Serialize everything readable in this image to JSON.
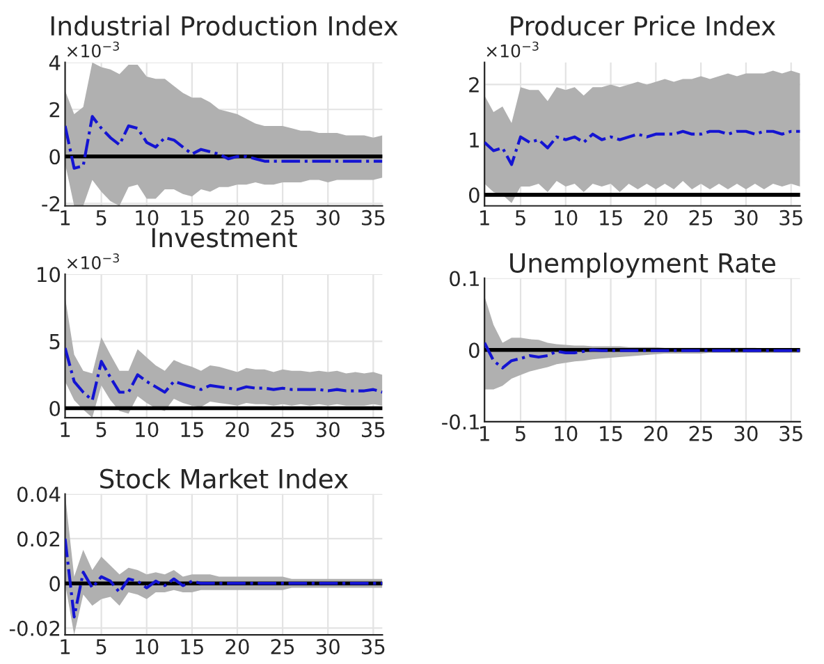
{
  "chart_data": [
    {
      "type": "line",
      "title": "Industrial Production Index",
      "annotations": [
        "×10$^{−3}$"
      ],
      "x": [
        1,
        2,
        3,
        4,
        5,
        6,
        7,
        8,
        9,
        10,
        11,
        12,
        13,
        14,
        15,
        16,
        17,
        18,
        19,
        20,
        21,
        22,
        23,
        24,
        25,
        26,
        27,
        28,
        29,
        30,
        31,
        32,
        33,
        34,
        35,
        36
      ],
      "series": [
        {
          "color": "#1414d2",
          "values": [
            1.3,
            -0.5,
            -0.4,
            1.7,
            1.2,
            0.8,
            0.5,
            1.3,
            1.2,
            0.6,
            0.4,
            0.8,
            0.7,
            0.4,
            0.1,
            0.3,
            0.2,
            0.1,
            -0.1,
            0,
            0,
            -0.1,
            -0.2,
            -0.2,
            -0.2,
            -0.2,
            -0.2,
            -0.2,
            -0.2,
            -0.2,
            -0.2,
            -0.2,
            -0.2,
            -0.2,
            -0.2,
            -0.2
          ],
          "upper": [
            2.8,
            1.8,
            2.1,
            4.0,
            3.8,
            3.7,
            3.5,
            3.9,
            3.9,
            3.4,
            3.3,
            3.3,
            3.0,
            2.7,
            2.5,
            2.5,
            2.3,
            2.0,
            1.9,
            1.8,
            1.6,
            1.4,
            1.3,
            1.3,
            1.3,
            1.2,
            1.1,
            1.1,
            1.0,
            1.0,
            1.0,
            0.9,
            0.9,
            0.9,
            0.8,
            0.9
          ],
          "lower": [
            -0.3,
            -2.1,
            -2.1,
            -1.0,
            -1.5,
            -1.9,
            -2.1,
            -1.3,
            -1.2,
            -1.8,
            -1.8,
            -1.4,
            -1.4,
            -1.6,
            -1.7,
            -1.4,
            -1.5,
            -1.3,
            -1.3,
            -1.2,
            -1.2,
            -1.1,
            -1.2,
            -1.2,
            -1.1,
            -1.1,
            -1.1,
            -1.0,
            -1.0,
            -1.1,
            -1.0,
            -1.0,
            -1.0,
            -1.0,
            -1.0,
            -0.9
          ]
        }
      ],
      "xlim": [
        1,
        36
      ],
      "ylim": [
        -2.1,
        4
      ],
      "xticks": [
        1,
        5,
        10,
        15,
        20,
        25,
        30,
        35
      ],
      "yticks": [
        -2,
        0,
        2,
        4
      ],
      "grid": true,
      "line_style": "dashed",
      "ref_lines": [
        {
          "axis": "y",
          "value": 0,
          "color": "#000000"
        }
      ]
    },
    {
      "type": "line",
      "title": "Producer Price Index",
      "annotations": [
        "×10$^{−3}$"
      ],
      "x": [
        1,
        2,
        3,
        4,
        5,
        6,
        7,
        8,
        9,
        10,
        11,
        12,
        13,
        14,
        15,
        16,
        17,
        18,
        19,
        20,
        21,
        22,
        23,
        24,
        25,
        26,
        27,
        28,
        29,
        30,
        31,
        32,
        33,
        34,
        35,
        36
      ],
      "series": [
        {
          "color": "#1414d2",
          "values": [
            0.95,
            0.8,
            0.85,
            0.55,
            1.05,
            0.95,
            1.0,
            0.85,
            1.05,
            1.0,
            1.05,
            0.95,
            1.1,
            1.0,
            1.05,
            1.0,
            1.05,
            1.1,
            1.05,
            1.1,
            1.1,
            1.1,
            1.15,
            1.1,
            1.1,
            1.15,
            1.15,
            1.1,
            1.15,
            1.15,
            1.1,
            1.15,
            1.15,
            1.1,
            1.15,
            1.15
          ],
          "upper": [
            1.8,
            1.5,
            1.6,
            1.3,
            1.95,
            1.9,
            1.9,
            1.7,
            1.95,
            1.9,
            1.95,
            1.8,
            1.95,
            1.95,
            2.0,
            1.95,
            2.0,
            2.05,
            2.0,
            2.05,
            2.1,
            2.05,
            2.1,
            2.1,
            2.15,
            2.1,
            2.15,
            2.2,
            2.15,
            2.2,
            2.2,
            2.2,
            2.25,
            2.2,
            2.25,
            2.2
          ],
          "lower": [
            0.2,
            0.05,
            0.0,
            -0.15,
            0.15,
            0.15,
            0.2,
            0.05,
            0.25,
            0.15,
            0.2,
            0.05,
            0.2,
            0.15,
            0.2,
            0.05,
            0.2,
            0.1,
            0.2,
            0.1,
            0.2,
            0.1,
            0.25,
            0.1,
            0.2,
            0.1,
            0.2,
            0.1,
            0.2,
            0.1,
            0.2,
            0.1,
            0.2,
            0.15,
            0.2,
            0.15
          ]
        }
      ],
      "xlim": [
        1,
        36
      ],
      "ylim": [
        -0.2,
        2.4
      ],
      "xticks": [
        1,
        5,
        10,
        15,
        20,
        25,
        30,
        35
      ],
      "yticks": [
        0,
        1,
        2
      ],
      "grid": true,
      "line_style": "dashed",
      "ref_lines": [
        {
          "axis": "y",
          "value": 0,
          "color": "#000000"
        }
      ]
    },
    {
      "type": "line",
      "title": "Investment",
      "annotations": [
        "×10$^{−3}$"
      ],
      "x": [
        1,
        2,
        3,
        4,
        5,
        6,
        7,
        8,
        9,
        10,
        11,
        12,
        13,
        14,
        15,
        16,
        17,
        18,
        19,
        20,
        21,
        22,
        23,
        24,
        25,
        26,
        27,
        28,
        29,
        30,
        31,
        32,
        33,
        34,
        35,
        36
      ],
      "series": [
        {
          "color": "#1414d2",
          "values": [
            4.5,
            2.0,
            1.2,
            0.6,
            3.5,
            2.3,
            1.2,
            1.2,
            2.5,
            2.0,
            1.6,
            1.2,
            2.0,
            1.8,
            1.6,
            1.4,
            1.7,
            1.6,
            1.5,
            1.4,
            1.6,
            1.5,
            1.5,
            1.4,
            1.5,
            1.4,
            1.4,
            1.4,
            1.4,
            1.3,
            1.4,
            1.3,
            1.3,
            1.3,
            1.4,
            1.2
          ],
          "upper": [
            8.3,
            4.0,
            2.8,
            2.6,
            5.3,
            4.0,
            2.8,
            2.8,
            4.4,
            3.8,
            3.2,
            2.8,
            3.6,
            3.3,
            3.1,
            2.8,
            3.2,
            3.1,
            2.9,
            2.7,
            3.0,
            2.9,
            2.9,
            2.7,
            2.9,
            2.8,
            2.8,
            2.7,
            2.8,
            2.7,
            2.8,
            2.6,
            2.7,
            2.6,
            2.7,
            2.5
          ],
          "lower": [
            2.0,
            0.6,
            -0.1,
            -0.7,
            1.7,
            0.6,
            -0.2,
            -0.4,
            0.9,
            0.4,
            0.0,
            -0.2,
            0.7,
            0.4,
            0.2,
            0.1,
            0.5,
            0.4,
            0.3,
            0.2,
            0.4,
            0.3,
            0.3,
            0.2,
            0.3,
            0.2,
            0.3,
            0.2,
            0.3,
            0.2,
            0.3,
            0.2,
            0.2,
            0.2,
            0.3,
            0.2
          ]
        }
      ],
      "xlim": [
        1,
        36
      ],
      "ylim": [
        -0.7,
        10
      ],
      "xticks": [
        1,
        5,
        10,
        15,
        20,
        25,
        30,
        35
      ],
      "yticks": [
        0,
        5,
        10
      ],
      "grid": true,
      "line_style": "dashed",
      "ref_lines": [
        {
          "axis": "y",
          "value": 0,
          "color": "#000000"
        }
      ]
    },
    {
      "type": "line",
      "title": "Unemployment Rate",
      "x": [
        1,
        2,
        3,
        4,
        5,
        6,
        7,
        8,
        9,
        10,
        11,
        12,
        13,
        14,
        15,
        16,
        17,
        18,
        19,
        20,
        21,
        22,
        23,
        24,
        25,
        26,
        27,
        28,
        29,
        30,
        31,
        32,
        33,
        34,
        35,
        36
      ],
      "series": [
        {
          "color": "#1414d2",
          "values": [
            0.01,
            -0.015,
            -0.025,
            -0.015,
            -0.012,
            -0.008,
            -0.01,
            -0.008,
            -0.002,
            -0.004,
            -0.004,
            -0.002,
            0,
            -0.001,
            -0.001,
            -0.001,
            -0.001,
            -0.001,
            -0.001,
            -0.001,
            -0.001,
            -0.001,
            -0.001,
            -0.001,
            -0.001,
            -0.001,
            -0.001,
            -0.001,
            -0.001,
            -0.001,
            -0.001,
            -0.001,
            -0.001,
            -0.001,
            -0.001,
            -0.001
          ],
          "upper": [
            0.075,
            0.035,
            0.01,
            0.017,
            0.017,
            0.015,
            0.014,
            0.01,
            0.008,
            0.007,
            0.006,
            0.006,
            0.005,
            0.005,
            0.005,
            0.005,
            0.004,
            0.004,
            0.004,
            0.004,
            0.003,
            0.003,
            0.003,
            0.003,
            0.003,
            0.003,
            0.003,
            0.003,
            0.003,
            0.003,
            0.003,
            0.002,
            0.002,
            0.002,
            0.002,
            0.002
          ],
          "lower": [
            -0.055,
            -0.055,
            -0.05,
            -0.04,
            -0.035,
            -0.03,
            -0.027,
            -0.024,
            -0.02,
            -0.018,
            -0.016,
            -0.015,
            -0.013,
            -0.012,
            -0.011,
            -0.01,
            -0.009,
            -0.008,
            -0.007,
            -0.006,
            -0.005,
            -0.005,
            -0.005,
            -0.005,
            -0.005,
            -0.004,
            -0.004,
            -0.004,
            -0.004,
            -0.004,
            -0.004,
            -0.004,
            -0.004,
            -0.004,
            -0.004,
            -0.004
          ]
        }
      ],
      "xlim": [
        1,
        36
      ],
      "ylim": [
        -0.1,
        0.1
      ],
      "xticks": [
        1,
        5,
        10,
        15,
        20,
        25,
        30,
        35
      ],
      "yticks": [
        -0.1,
        0,
        0.1
      ],
      "grid": true,
      "line_style": "dashed",
      "ref_lines": [
        {
          "axis": "y",
          "value": 0,
          "color": "#000000"
        }
      ]
    },
    {
      "type": "line",
      "title": "Stock Market Index",
      "x": [
        1,
        2,
        3,
        4,
        5,
        6,
        7,
        8,
        9,
        10,
        11,
        12,
        13,
        14,
        15,
        16,
        17,
        18,
        19,
        20,
        21,
        22,
        23,
        24,
        25,
        26,
        27,
        28,
        29,
        30,
        31,
        32,
        33,
        34,
        35,
        36
      ],
      "series": [
        {
          "color": "#1414d2",
          "values": [
            0.02,
            -0.015,
            0.005,
            -0.002,
            0.003,
            0.001,
            -0.004,
            0.002,
            0.001,
            -0.002,
            0.001,
            -0.001,
            0.002,
            -0.001,
            0.001,
            0,
            0,
            0,
            0,
            0,
            0,
            0,
            0,
            0,
            0,
            0,
            0,
            0,
            0,
            0,
            0,
            0,
            0,
            0,
            0,
            0
          ],
          "upper": [
            0.04,
            0.003,
            0.015,
            0.006,
            0.012,
            0.008,
            0.004,
            0.007,
            0.006,
            0.004,
            0.005,
            0.004,
            0.006,
            0.003,
            0.004,
            0.004,
            0.004,
            0.003,
            0.003,
            0.003,
            0.003,
            0.003,
            0.003,
            0.003,
            0.003,
            0.002,
            0.002,
            0.002,
            0.002,
            0.002,
            0.002,
            0.002,
            0.002,
            0.002,
            0.002,
            0.002
          ],
          "lower": [
            0.0,
            -0.023,
            -0.005,
            -0.01,
            -0.007,
            -0.006,
            -0.01,
            -0.004,
            -0.005,
            -0.007,
            -0.004,
            -0.004,
            -0.003,
            -0.004,
            -0.004,
            -0.003,
            -0.003,
            -0.003,
            -0.003,
            -0.003,
            -0.003,
            -0.003,
            -0.003,
            -0.003,
            -0.003,
            -0.002,
            -0.002,
            -0.002,
            -0.002,
            -0.002,
            -0.002,
            -0.002,
            -0.002,
            -0.002,
            -0.002,
            -0.002
          ]
        }
      ],
      "xlim": [
        1,
        36
      ],
      "ylim": [
        -0.023,
        0.04
      ],
      "xticks": [
        1,
        5,
        10,
        15,
        20,
        25,
        30,
        35
      ],
      "yticks": [
        -0.02,
        0,
        0.02,
        0.04
      ],
      "grid": true,
      "line_style": "dashed",
      "ref_lines": [
        {
          "axis": "y",
          "value": 0,
          "color": "#000000"
        }
      ]
    }
  ]
}
